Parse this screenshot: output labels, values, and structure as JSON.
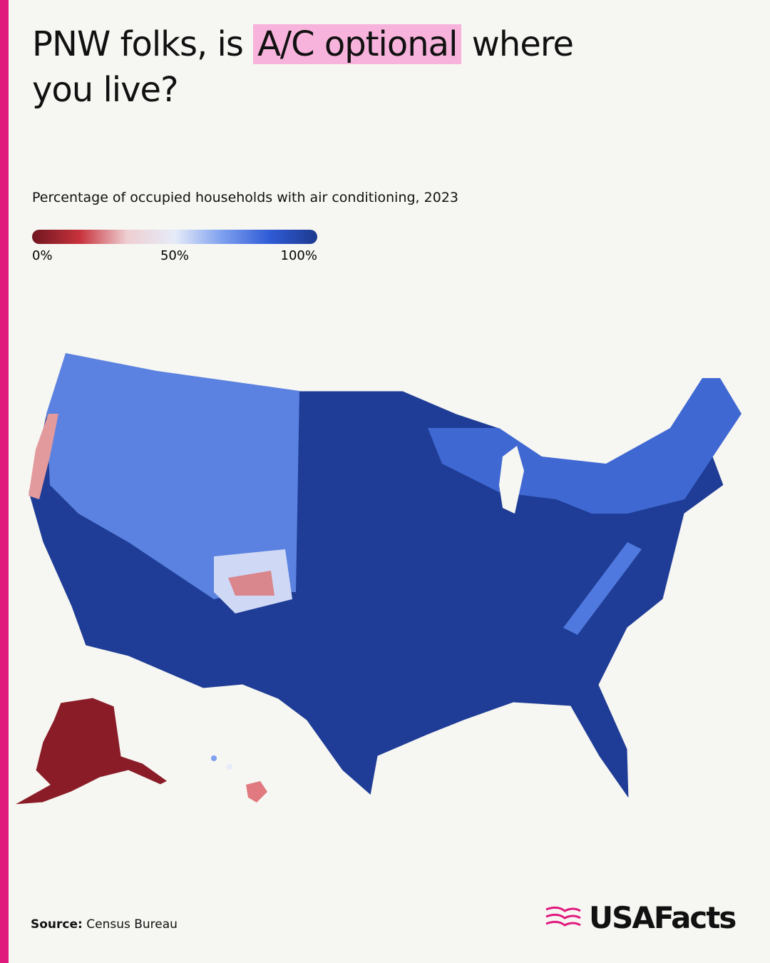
{
  "header": {
    "title_line1_start": "PNW folks, is ",
    "title_highlight": "A/C optional",
    "title_line1_end": " where",
    "title_line2": "you live?",
    "subtitle": "Percentage of occupied households with air conditioning, 2023"
  },
  "legend": {
    "min": 0,
    "max": 100,
    "ticks": [
      {
        "value": 0,
        "label": "0%"
      },
      {
        "value": 50,
        "label": "50%"
      },
      {
        "value": 100,
        "label": "100%"
      }
    ],
    "colors": [
      "#6e1620",
      "#c8323c",
      "#eecfd2",
      "#e6ebf8",
      "#7ea0ef",
      "#2f5bd6",
      "#1e3a8f"
    ]
  },
  "footer": {
    "source_label": "Source:",
    "source": "Census Bureau",
    "logo": "USAFacts"
  }
}
